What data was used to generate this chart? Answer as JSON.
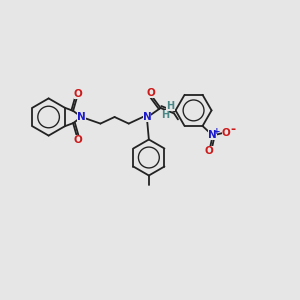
{
  "bg_color": "#e6e6e6",
  "bond_color": "#222222",
  "N_color": "#1a1acc",
  "O_color": "#cc1a1a",
  "H_color": "#4a8888",
  "lw": 1.3,
  "fig_w": 3.0,
  "fig_h": 3.0,
  "dpi": 100,
  "xlim": [
    0,
    10
  ],
  "ylim": [
    0,
    10
  ]
}
